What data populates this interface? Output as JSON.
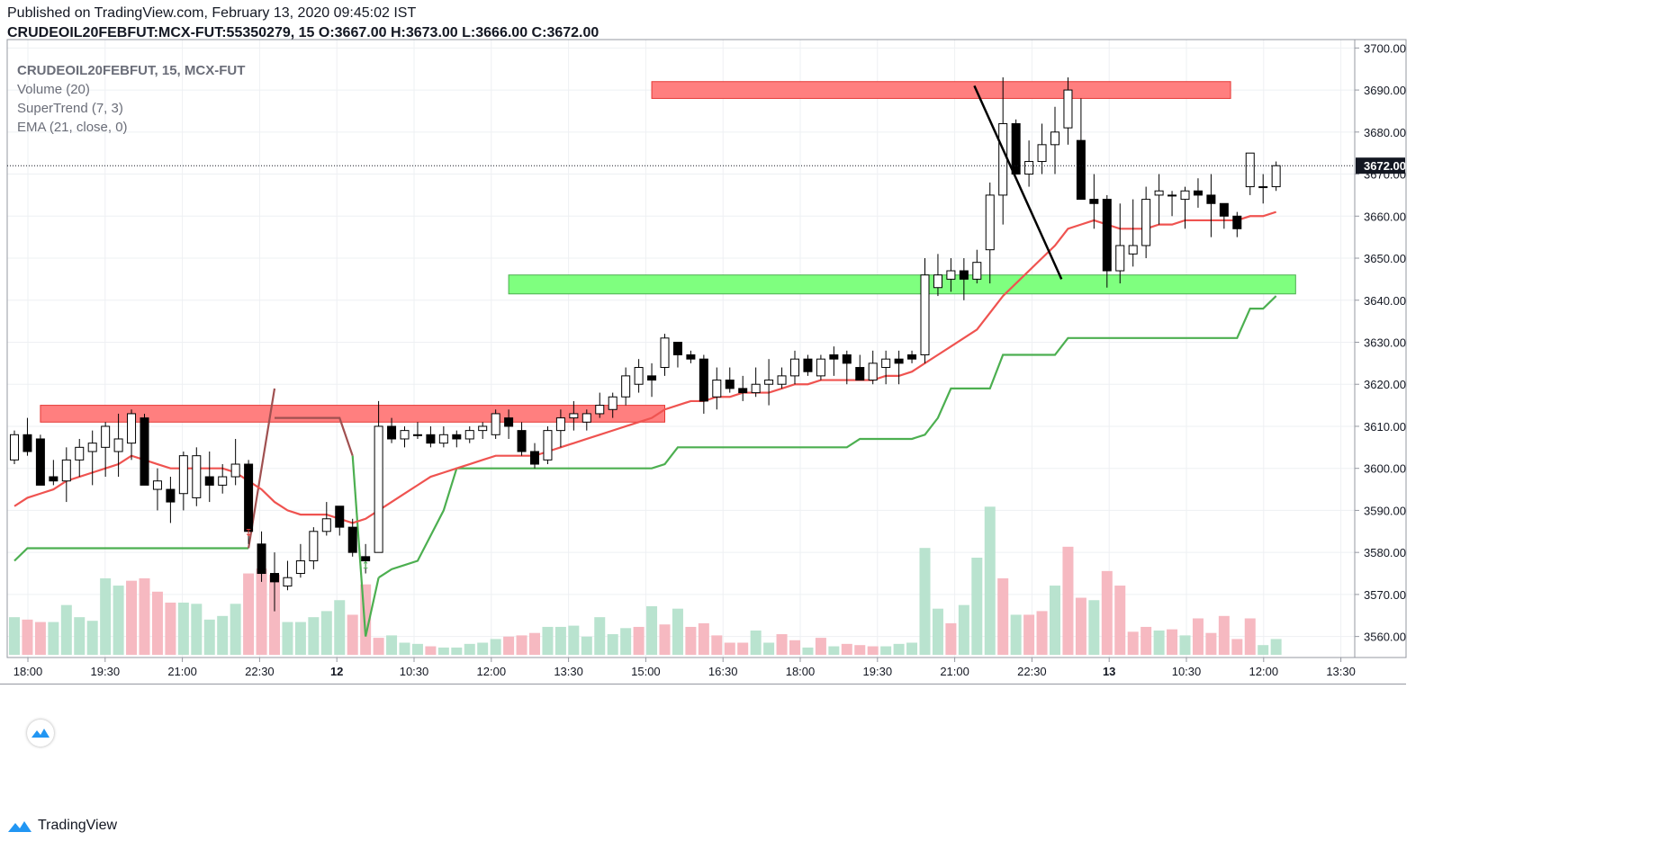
{
  "header": {
    "published": "Published on TradingView.com, February 13, 2020 09:45:02 IST",
    "symbol_line": "CRUDEOIL20FEBFUT:MCX-FUT:55350279, 15",
    "o_label": "O:",
    "o_value": "3667.00",
    "h_label": "H:",
    "h_value": "3673.00",
    "l_label": "L:",
    "l_value": "3666.00",
    "c_label": "C:",
    "c_value": "3672.00"
  },
  "legend": {
    "symbol": "CRUDEOIL20FEBFUT, 15, MCX-FUT",
    "volume": "Volume (20)",
    "supertrend": "SuperTrend (7, 3)",
    "ema": "EMA (21, close, 0)"
  },
  "footer": {
    "brand": "TradingView"
  },
  "colors": {
    "up_candle": "#ffffff",
    "down_candle": "#000000",
    "candle_outline": "#000000",
    "vol_up": "#b9e3cf",
    "vol_down": "#f6b9c1",
    "ema": "#ef5350",
    "supertrend_up": "#4caf50",
    "supertrend_down": "#a05050",
    "resistance_zone": "#ff7f7f",
    "support_zone": "#7fff7f",
    "grid": "#eef0f3",
    "last_price_bg": "#131722"
  },
  "chart_data": {
    "type": "candlestick",
    "ylim": [
      3555,
      3702
    ],
    "y_ticks": [
      "3560.00",
      "3570.00",
      "3580.00",
      "3590.00",
      "3600.00",
      "3610.00",
      "3620.00",
      "3630.00",
      "3640.00",
      "3650.00",
      "3660.00",
      "3670.00",
      "3680.00",
      "3690.00",
      "3700.00"
    ],
    "x_ticks": [
      "18:00",
      "19:30",
      "21:00",
      "22:30",
      "12",
      "10:30",
      "12:00",
      "13:30",
      "15:00",
      "16:30",
      "18:00",
      "19:30",
      "21:00",
      "22:30",
      "13",
      "10:30",
      "12:00",
      "13:30"
    ],
    "last_price": "3672.00",
    "candles": [
      [
        3602,
        3609,
        3601,
        3608
      ],
      [
        3608,
        3612,
        3603,
        3604
      ],
      [
        3607,
        3608,
        3596,
        3596
      ],
      [
        3598,
        3602,
        3596,
        3597
      ],
      [
        3597,
        3605,
        3592,
        3602
      ],
      [
        3602,
        3607,
        3598,
        3605
      ],
      [
        3604,
        3609,
        3596,
        3606
      ],
      [
        3605,
        3611,
        3598,
        3610
      ],
      [
        3604,
        3613,
        3598,
        3607
      ],
      [
        3606,
        3614,
        3602,
        3613
      ],
      [
        3612,
        3613,
        3596,
        3596
      ],
      [
        3595,
        3600,
        3590,
        3597
      ],
      [
        3595,
        3598,
        3587,
        3592
      ],
      [
        3594,
        3604,
        3590,
        3603
      ],
      [
        3593,
        3605,
        3591,
        3603
      ],
      [
        3598,
        3604,
        3592,
        3596
      ],
      [
        3596,
        3601,
        3594,
        3598
      ],
      [
        3598,
        3607,
        3596,
        3601
      ],
      [
        3601,
        3602,
        3582,
        3585
      ],
      [
        3582,
        3585,
        3573,
        3575
      ],
      [
        3575,
        3580,
        3566,
        3573
      ],
      [
        3572,
        3578,
        3571,
        3574
      ],
      [
        3575,
        3582,
        3574,
        3578
      ],
      [
        3578,
        3586,
        3576,
        3585
      ],
      [
        3585,
        3592,
        3584,
        3588
      ],
      [
        3591,
        3591,
        3584,
        3586
      ],
      [
        3586,
        3588,
        3579,
        3580
      ],
      [
        3579,
        3582,
        3575,
        3578
      ],
      [
        3580,
        3616,
        3580,
        3610
      ],
      [
        3610,
        3612,
        3606,
        3607
      ],
      [
        3607,
        3610,
        3605,
        3609
      ],
      [
        3608,
        3611,
        3607,
        3608
      ],
      [
        3608,
        3610,
        3605,
        3606
      ],
      [
        3606,
        3610,
        3605,
        3608
      ],
      [
        3608,
        3609,
        3605,
        3607
      ],
      [
        3607,
        3610,
        3606,
        3609
      ],
      [
        3609,
        3611,
        3607,
        3610
      ],
      [
        3608,
        3614,
        3607,
        3613
      ],
      [
        3612,
        3614,
        3607,
        3610
      ],
      [
        3609,
        3611,
        3603,
        3604
      ],
      [
        3604,
        3606,
        3600,
        3601
      ],
      [
        3602,
        3610,
        3601,
        3609
      ],
      [
        3609,
        3614,
        3605,
        3612
      ],
      [
        3612,
        3616,
        3609,
        3613
      ],
      [
        3611,
        3614,
        3609,
        3613
      ],
      [
        3613,
        3618,
        3612,
        3615
      ],
      [
        3614,
        3618,
        3612,
        3617
      ],
      [
        3617,
        3624,
        3615,
        3622
      ],
      [
        3620,
        3626,
        3618,
        3624
      ],
      [
        3622,
        3625,
        3617,
        3621
      ],
      [
        3624,
        3632,
        3622,
        3631
      ],
      [
        3630,
        3630,
        3624,
        3627
      ],
      [
        3627,
        3628,
        3625,
        3626
      ],
      [
        3626,
        3627,
        3613,
        3616
      ],
      [
        3617,
        3624,
        3614,
        3621
      ],
      [
        3621,
        3624,
        3618,
        3619
      ],
      [
        3619,
        3622,
        3616,
        3618
      ],
      [
        3618,
        3624,
        3617,
        3620
      ],
      [
        3620,
        3626,
        3615,
        3621
      ],
      [
        3620,
        3624,
        3619,
        3622
      ],
      [
        3622,
        3628,
        3620,
        3626
      ],
      [
        3626,
        3627,
        3622,
        3623
      ],
      [
        3622,
        3627,
        3621,
        3626
      ],
      [
        3627,
        3629,
        3622,
        3626
      ],
      [
        3627,
        3628,
        3620,
        3625
      ],
      [
        3624,
        3627,
        3621,
        3621
      ],
      [
        3621,
        3628,
        3620,
        3625
      ],
      [
        3624,
        3628,
        3620,
        3626
      ],
      [
        3626,
        3628,
        3620,
        3625
      ],
      [
        3627,
        3628,
        3625,
        3626
      ],
      [
        3627,
        3650,
        3625,
        3646
      ],
      [
        3643,
        3651,
        3641,
        3646
      ],
      [
        3645,
        3650,
        3642,
        3647
      ],
      [
        3647,
        3650,
        3640,
        3645
      ],
      [
        3645,
        3652,
        3644,
        3649
      ],
      [
        3652,
        3668,
        3644,
        3665
      ],
      [
        3665,
        3693,
        3658,
        3682
      ],
      [
        3682,
        3683,
        3670,
        3670
      ],
      [
        3670,
        3678,
        3667,
        3673
      ],
      [
        3673,
        3682,
        3670,
        3677
      ],
      [
        3677,
        3686,
        3670,
        3680
      ],
      [
        3681,
        3693,
        3677,
        3690
      ],
      [
        3678,
        3688,
        3664,
        3664
      ],
      [
        3664,
        3670,
        3657,
        3663
      ],
      [
        3664,
        3665,
        3643,
        3647
      ],
      [
        3647,
        3663,
        3644,
        3653
      ],
      [
        3651,
        3664,
        3648,
        3653
      ],
      [
        3653,
        3667,
        3650,
        3664
      ],
      [
        3665,
        3670,
        3658,
        3666
      ],
      [
        3665,
        3666,
        3660,
        3665
      ],
      [
        3664,
        3667,
        3657,
        3666
      ],
      [
        3666,
        3669,
        3662,
        3665
      ],
      [
        3665,
        3670,
        3655,
        3663
      ],
      [
        3663,
        3662,
        3657,
        3660
      ],
      [
        3660,
        3661,
        3655,
        3657
      ],
      [
        3667,
        3675,
        3665,
        3675
      ],
      [
        3667,
        3670,
        3663,
        3667
      ],
      [
        3667,
        3673,
        3666,
        3672
      ]
    ],
    "volume": [
      [
        31,
        1
      ],
      [
        29,
        0
      ],
      [
        27,
        0
      ],
      [
        27,
        1
      ],
      [
        41,
        1
      ],
      [
        31,
        1
      ],
      [
        28,
        1
      ],
      [
        63,
        1
      ],
      [
        57,
        1
      ],
      [
        61,
        0
      ],
      [
        63,
        0
      ],
      [
        52,
        0
      ],
      [
        43,
        0
      ],
      [
        43,
        1
      ],
      [
        42,
        1
      ],
      [
        29,
        1
      ],
      [
        32,
        1
      ],
      [
        42,
        1
      ],
      [
        67,
        0
      ],
      [
        71,
        0
      ],
      [
        66,
        0
      ],
      [
        27,
        1
      ],
      [
        27,
        1
      ],
      [
        31,
        1
      ],
      [
        36,
        1
      ],
      [
        45,
        1
      ],
      [
        33,
        0
      ],
      [
        58,
        0
      ],
      [
        14,
        0
      ],
      [
        16,
        1
      ],
      [
        10,
        1
      ],
      [
        9,
        1
      ],
      [
        7,
        0
      ],
      [
        6,
        1
      ],
      [
        6,
        1
      ],
      [
        9,
        1
      ],
      [
        10,
        1
      ],
      [
        13,
        1
      ],
      [
        15,
        0
      ],
      [
        16,
        0
      ],
      [
        18,
        0
      ],
      [
        23,
        1
      ],
      [
        23,
        1
      ],
      [
        24,
        1
      ],
      [
        15,
        1
      ],
      [
        31,
        1
      ],
      [
        17,
        1
      ],
      [
        22,
        1
      ],
      [
        23,
        0
      ],
      [
        40,
        1
      ],
      [
        25,
        0
      ],
      [
        38,
        1
      ],
      [
        23,
        0
      ],
      [
        26,
        0
      ],
      [
        16,
        0
      ],
      [
        10,
        0
      ],
      [
        10,
        0
      ],
      [
        20,
        1
      ],
      [
        10,
        1
      ],
      [
        17,
        0
      ],
      [
        12,
        0
      ],
      [
        6,
        1
      ],
      [
        14,
        0
      ],
      [
        7,
        1
      ],
      [
        9,
        0
      ],
      [
        8,
        0
      ],
      [
        7,
        0
      ],
      [
        7,
        1
      ],
      [
        9,
        1
      ],
      [
        10,
        1
      ],
      [
        88,
        1
      ],
      [
        38,
        1
      ],
      [
        26,
        0
      ],
      [
        41,
        1
      ],
      [
        80,
        1
      ],
      [
        122,
        1
      ],
      [
        63,
        0
      ],
      [
        33,
        1
      ],
      [
        33,
        0
      ],
      [
        36,
        0
      ],
      [
        57,
        1
      ],
      [
        89,
        0
      ],
      [
        47,
        0
      ],
      [
        45,
        1
      ],
      [
        69,
        0
      ],
      [
        57,
        0
      ],
      [
        19,
        0
      ],
      [
        23,
        0
      ],
      [
        20,
        1
      ],
      [
        21,
        0
      ],
      [
        16,
        1
      ],
      [
        30,
        0
      ],
      [
        18,
        0
      ],
      [
        32,
        0
      ],
      [
        13,
        0
      ],
      [
        30,
        0
      ],
      [
        8,
        1
      ],
      [
        13,
        1
      ]
    ],
    "ema": [
      3591,
      3593,
      3594,
      3595,
      3597,
      3598,
      3599,
      3600,
      3601,
      3603,
      3602,
      3601,
      3600,
      3600,
      3600,
      3600,
      3600,
      3599,
      3597,
      3595,
      3592,
      3590,
      3589,
      3589,
      3589,
      3588,
      3587,
      3588,
      3590,
      3592,
      3594,
      3596,
      3598,
      3599,
      3600,
      3601,
      3602,
      3603,
      3603,
      3603,
      3603,
      3604,
      3605,
      3606,
      3607,
      3608,
      3609,
      3610,
      3611,
      3612,
      3614,
      3615,
      3616,
      3616,
      3617,
      3617,
      3618,
      3618,
      3618,
      3619,
      3620,
      3620,
      3621,
      3621,
      3621,
      3621,
      3621,
      3622,
      3622,
      3623,
      3625,
      3627,
      3629,
      3631,
      3633,
      3637,
      3641,
      3644,
      3647,
      3650,
      3653,
      3657,
      3658,
      3659,
      3658,
      3657,
      3657,
      3657,
      3658,
      3658,
      3659,
      3659,
      3659,
      3659,
      3659,
      3660,
      3660,
      3661
    ],
    "supertrend": [
      3578,
      3581,
      3581,
      3581,
      3581,
      3581,
      3581,
      3581,
      3581,
      3581,
      3581,
      3581,
      3581,
      3581,
      3581,
      3581,
      3581,
      3581,
      3581,
      null,
      3612,
      3612,
      3612,
      3612,
      3612,
      3612,
      3603,
      null,
      3574,
      3576,
      3577,
      3578,
      3584,
      3590,
      3600,
      3600,
      3600,
      3600,
      3600,
      3600,
      3600,
      3600,
      3600,
      3600,
      3600,
      3600,
      3600,
      3600,
      3600,
      3600,
      3601,
      3605,
      3605,
      3605,
      3605,
      3605,
      3605,
      3605,
      3605,
      3605,
      3605,
      3605,
      3605,
      3605,
      3605,
      3607,
      3607,
      3607,
      3607,
      3607,
      3608,
      3612,
      3619,
      3619,
      3619,
      3619,
      3627,
      3627,
      3627,
      3627,
      3627,
      3631,
      3631,
      3631,
      3631,
      3631,
      3631,
      3631,
      3631,
      3631,
      3631,
      3631,
      3631,
      3631,
      3631,
      3638,
      3638,
      3641
    ],
    "zones": [
      {
        "type": "resistance",
        "x0": 2,
        "x1": 50,
        "y0": 3611,
        "y1": 3615
      },
      {
        "type": "resistance",
        "x0": 49,
        "x1": 93.5,
        "y0": 3688,
        "y1": 3692
      },
      {
        "type": "support",
        "x0": 38,
        "x1": 98.5,
        "y0": 3641.5,
        "y1": 3646
      }
    ],
    "trendline": [
      [
        73.8,
        3691
      ],
      [
        80.5,
        3645
      ]
    ],
    "signals": [
      {
        "index": 18,
        "type": "sell"
      },
      {
        "index": 27,
        "type": "buy"
      }
    ]
  }
}
